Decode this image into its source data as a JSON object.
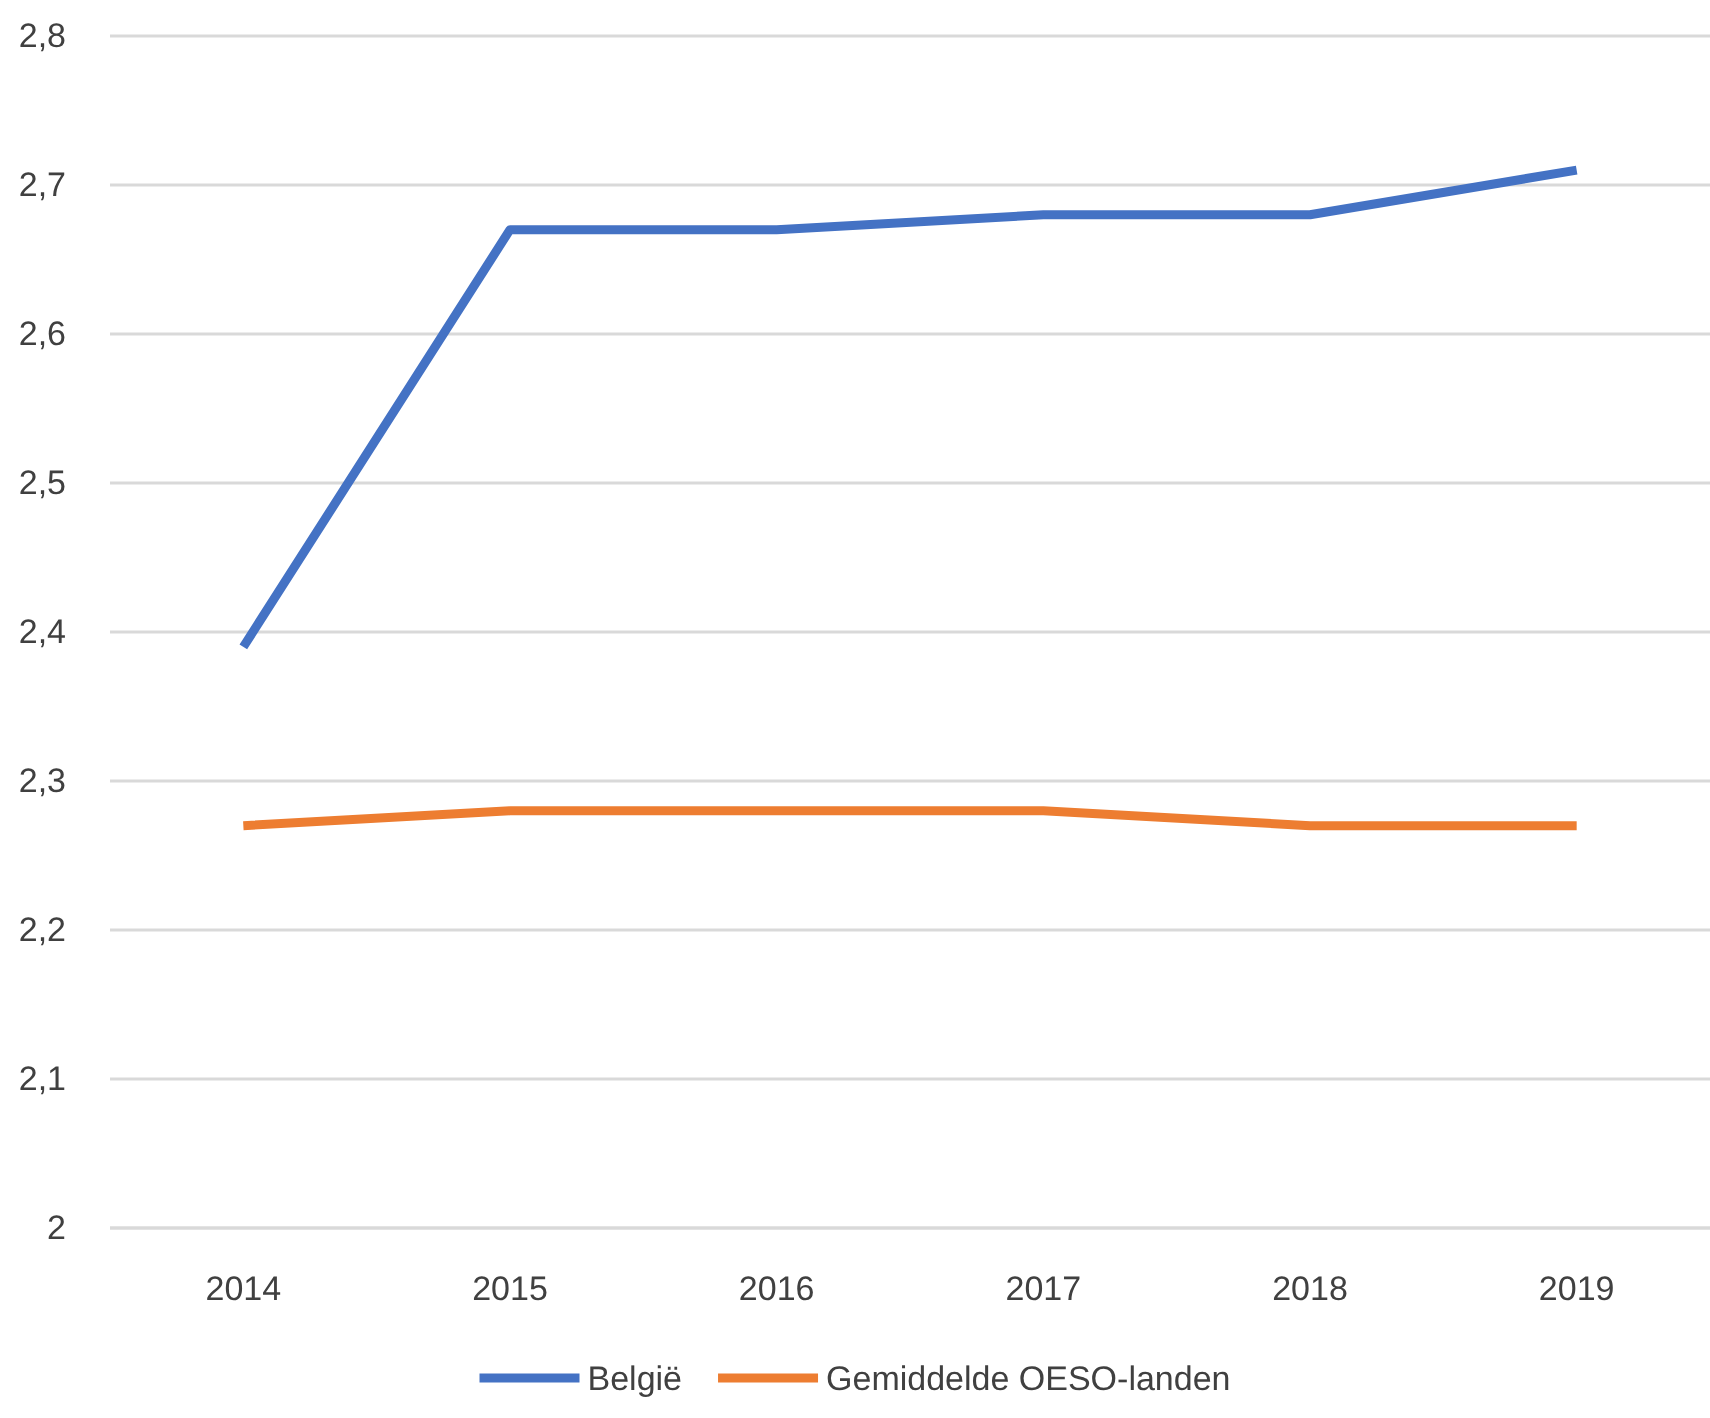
{
  "chart_data": {
    "type": "line",
    "categories": [
      "2014",
      "2015",
      "2016",
      "2017",
      "2018",
      "2019"
    ],
    "series": [
      {
        "name": "België",
        "color": "#4472c4",
        "values": [
          2.39,
          2.67,
          2.67,
          2.68,
          2.68,
          2.71
        ]
      },
      {
        "name": "Gemiddelde OESO-landen",
        "color": "#ed7d31",
        "values": [
          2.27,
          2.28,
          2.28,
          2.28,
          2.27,
          2.27
        ]
      }
    ],
    "ylim": [
      2,
      2.8
    ],
    "yticks": [
      2,
      {
        "value": 2.1,
        "label": "2,1"
      },
      {
        "value": 2.2,
        "label": "2,2"
      },
      {
        "value": 2.3,
        "label": "2,3"
      },
      {
        "value": 2.4,
        "label": "2,4"
      },
      {
        "value": 2.5,
        "label": "2,5"
      },
      {
        "value": 2.6,
        "label": "2,6"
      },
      {
        "value": 2.7,
        "label": "2,7"
      },
      {
        "value": 2.8,
        "label": "2,8"
      }
    ],
    "grid": "y",
    "legend": "bottom",
    "marker": "none",
    "line_style": "solid"
  }
}
